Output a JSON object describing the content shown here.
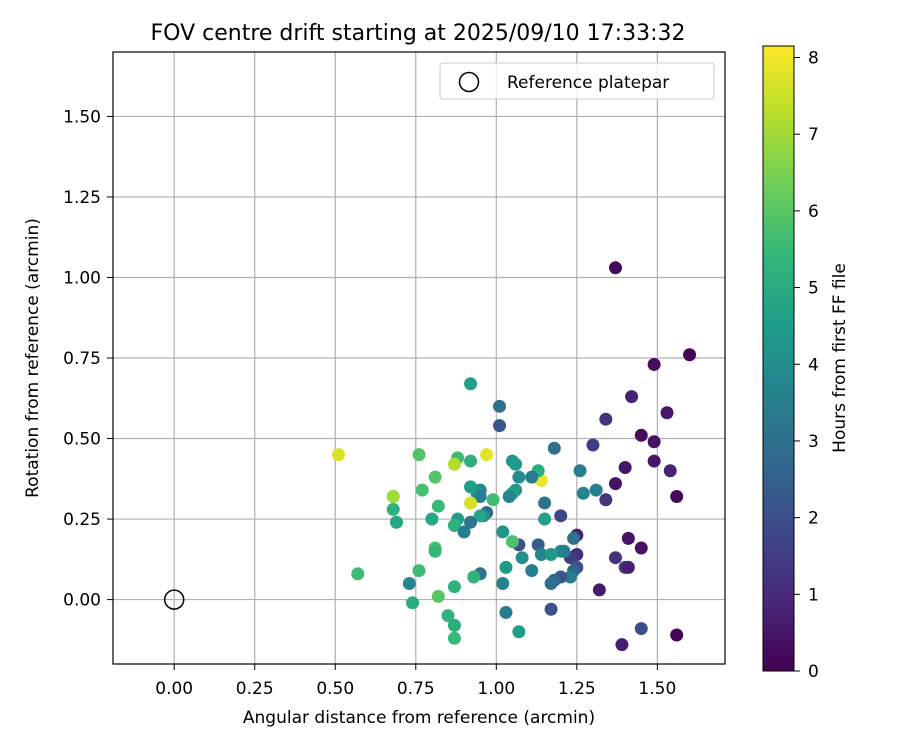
{
  "chart_data": {
    "type": "scatter",
    "title": "FOV centre drift starting at 2025/09/10 17:33:32",
    "xlabel": "Angular distance from reference (arcmin)",
    "ylabel": "Rotation from reference (arcmin)",
    "xlim": [
      -0.19,
      1.71
    ],
    "ylim": [
      -0.2,
      1.7
    ],
    "x_ticks": [
      0.0,
      0.25,
      0.5,
      0.75,
      1.0,
      1.25,
      1.5
    ],
    "x_tick_labels": [
      "0.00",
      "0.25",
      "0.50",
      "0.75",
      "1.00",
      "1.25",
      "1.50"
    ],
    "y_ticks": [
      0.0,
      0.25,
      0.5,
      0.75,
      1.0,
      1.25,
      1.5
    ],
    "y_tick_labels": [
      "0.00",
      "0.25",
      "0.50",
      "0.75",
      "1.00",
      "1.25",
      "1.50"
    ],
    "grid": true,
    "legend_position": "top-right",
    "legend_label": "Reference platepar",
    "reference_point": {
      "x": 0.0,
      "y": 0.0
    },
    "colorbar": {
      "label": "Hours from first FF file",
      "range": [
        0,
        8.15
      ],
      "ticks": [
        0,
        1,
        2,
        3,
        4,
        5,
        6,
        7,
        8
      ],
      "tick_labels": [
        "0",
        "1",
        "2",
        "3",
        "4",
        "5",
        "6",
        "7",
        "8"
      ],
      "colormap": "viridis",
      "colormap_stops": [
        "#440154",
        "#482878",
        "#3e4989",
        "#31688e",
        "#26828e",
        "#1f9e89",
        "#35b779",
        "#6ece58",
        "#b5de2b",
        "#fde725"
      ]
    },
    "points": [
      {
        "x": 1.37,
        "y": 1.03,
        "t": 0.2
      },
      {
        "x": 1.6,
        "y": 0.76,
        "t": 0.1
      },
      {
        "x": 1.49,
        "y": 0.73,
        "t": 0.3
      },
      {
        "x": 1.42,
        "y": 0.63,
        "t": 0.8
      },
      {
        "x": 1.53,
        "y": 0.58,
        "t": 0.5
      },
      {
        "x": 1.34,
        "y": 0.56,
        "t": 1.2
      },
      {
        "x": 1.45,
        "y": 0.51,
        "t": 0.3
      },
      {
        "x": 1.49,
        "y": 0.49,
        "t": 0.4
      },
      {
        "x": 1.3,
        "y": 0.48,
        "t": 1.5
      },
      {
        "x": 1.49,
        "y": 0.43,
        "t": 0.5
      },
      {
        "x": 1.4,
        "y": 0.41,
        "t": 0.5
      },
      {
        "x": 1.54,
        "y": 0.4,
        "t": 0.8
      },
      {
        "x": 1.37,
        "y": 0.36,
        "t": 0.4
      },
      {
        "x": 1.56,
        "y": 0.32,
        "t": 0.2
      },
      {
        "x": 1.34,
        "y": 0.31,
        "t": 1.2
      },
      {
        "x": 1.31,
        "y": 0.34,
        "t": 3.5
      },
      {
        "x": 1.26,
        "y": 0.4,
        "t": 3.5
      },
      {
        "x": 1.27,
        "y": 0.33,
        "t": 3.7
      },
      {
        "x": 1.18,
        "y": 0.47,
        "t": 3.0
      },
      {
        "x": 1.41,
        "y": 0.19,
        "t": 0.4
      },
      {
        "x": 1.45,
        "y": 0.16,
        "t": 0.4
      },
      {
        "x": 1.37,
        "y": 0.13,
        "t": 1.2
      },
      {
        "x": 1.4,
        "y": 0.1,
        "t": 1.4
      },
      {
        "x": 1.41,
        "y": 0.1,
        "t": 0.7
      },
      {
        "x": 1.32,
        "y": 0.03,
        "t": 0.6
      },
      {
        "x": 1.45,
        "y": -0.09,
        "t": 2.0
      },
      {
        "x": 1.39,
        "y": -0.14,
        "t": 0.7
      },
      {
        "x": 1.56,
        "y": -0.11,
        "t": 0.1
      },
      {
        "x": 1.25,
        "y": 0.2,
        "t": 0.8
      },
      {
        "x": 1.25,
        "y": 0.14,
        "t": 1.1
      },
      {
        "x": 1.23,
        "y": 0.13,
        "t": 1.6
      },
      {
        "x": 1.25,
        "y": 0.1,
        "t": 2.0
      },
      {
        "x": 1.24,
        "y": 0.09,
        "t": 2.6
      },
      {
        "x": 1.24,
        "y": 0.19,
        "t": 3.0
      },
      {
        "x": 1.23,
        "y": 0.07,
        "t": 3.5
      },
      {
        "x": 1.2,
        "y": 0.15,
        "t": 4.2
      },
      {
        "x": 1.21,
        "y": 0.15,
        "t": 3.6
      },
      {
        "x": 1.2,
        "y": 0.26,
        "t": 1.7
      },
      {
        "x": 1.2,
        "y": 0.07,
        "t": 2.2
      },
      {
        "x": 1.18,
        "y": 0.06,
        "t": 2.6
      },
      {
        "x": 1.17,
        "y": 0.05,
        "t": 3.0
      },
      {
        "x": 1.17,
        "y": -0.03,
        "t": 2.1
      },
      {
        "x": 1.15,
        "y": 0.3,
        "t": 3.1
      },
      {
        "x": 1.15,
        "y": 0.25,
        "t": 4.6
      },
      {
        "x": 1.13,
        "y": 0.17,
        "t": 2.4
      },
      {
        "x": 1.14,
        "y": 0.14,
        "t": 3.8
      },
      {
        "x": 1.17,
        "y": 0.14,
        "t": 4.3
      },
      {
        "x": 1.11,
        "y": 0.09,
        "t": 3.5
      },
      {
        "x": 1.14,
        "y": 0.37,
        "t": 7.9
      },
      {
        "x": 1.13,
        "y": 0.4,
        "t": 5.0
      },
      {
        "x": 1.11,
        "y": 0.38,
        "t": 3.3
      },
      {
        "x": 1.07,
        "y": 0.38,
        "t": 4.0
      },
      {
        "x": 1.05,
        "y": 0.43,
        "t": 4.2
      },
      {
        "x": 1.06,
        "y": 0.42,
        "t": 4.5
      },
      {
        "x": 1.06,
        "y": 0.34,
        "t": 4.3
      },
      {
        "x": 1.05,
        "y": 0.33,
        "t": 4.6
      },
      {
        "x": 1.04,
        "y": 0.32,
        "t": 3.8
      },
      {
        "x": 1.01,
        "y": 0.6,
        "t": 3.0
      },
      {
        "x": 1.01,
        "y": 0.54,
        "t": 2.2
      },
      {
        "x": 0.92,
        "y": 0.67,
        "t": 4.6
      },
      {
        "x": 1.07,
        "y": 0.17,
        "t": 2.0
      },
      {
        "x": 1.05,
        "y": 0.18,
        "t": 5.8
      },
      {
        "x": 1.08,
        "y": 0.13,
        "t": 4.0
      },
      {
        "x": 1.03,
        "y": 0.1,
        "t": 4.4
      },
      {
        "x": 1.02,
        "y": 0.21,
        "t": 4.3
      },
      {
        "x": 1.02,
        "y": 0.05,
        "t": 3.6
      },
      {
        "x": 1.03,
        "y": -0.04,
        "t": 3.4
      },
      {
        "x": 1.07,
        "y": -0.1,
        "t": 4.5
      },
      {
        "x": 0.97,
        "y": 0.45,
        "t": 7.8
      },
      {
        "x": 0.92,
        "y": 0.43,
        "t": 5.2
      },
      {
        "x": 0.88,
        "y": 0.44,
        "t": 5.6
      },
      {
        "x": 0.87,
        "y": 0.42,
        "t": 7.2
      },
      {
        "x": 0.95,
        "y": 0.34,
        "t": 3.7
      },
      {
        "x": 0.94,
        "y": 0.33,
        "t": 4.5
      },
      {
        "x": 0.95,
        "y": 0.32,
        "t": 3.5
      },
      {
        "x": 0.92,
        "y": 0.35,
        "t": 4.5
      },
      {
        "x": 0.99,
        "y": 0.31,
        "t": 5.6
      },
      {
        "x": 0.97,
        "y": 0.27,
        "t": 2.6
      },
      {
        "x": 0.96,
        "y": 0.26,
        "t": 4.0
      },
      {
        "x": 0.95,
        "y": 0.26,
        "t": 4.8
      },
      {
        "x": 0.92,
        "y": 0.3,
        "t": 7.6
      },
      {
        "x": 0.92,
        "y": 0.24,
        "t": 3.2
      },
      {
        "x": 0.88,
        "y": 0.25,
        "t": 4.6
      },
      {
        "x": 0.87,
        "y": 0.23,
        "t": 5.2
      },
      {
        "x": 0.9,
        "y": 0.21,
        "t": 3.5
      },
      {
        "x": 0.95,
        "y": 0.08,
        "t": 3.2
      },
      {
        "x": 0.93,
        "y": 0.07,
        "t": 5.3
      },
      {
        "x": 0.87,
        "y": 0.04,
        "t": 5.3
      },
      {
        "x": 0.85,
        "y": -0.05,
        "t": 5.3
      },
      {
        "x": 0.87,
        "y": -0.08,
        "t": 5.1
      },
      {
        "x": 0.87,
        "y": -0.12,
        "t": 5.5
      },
      {
        "x": 0.82,
        "y": 0.29,
        "t": 5.5
      },
      {
        "x": 0.8,
        "y": 0.25,
        "t": 4.8
      },
      {
        "x": 0.81,
        "y": 0.16,
        "t": 5.8
      },
      {
        "x": 0.81,
        "y": 0.15,
        "t": 5.4
      },
      {
        "x": 0.81,
        "y": 0.38,
        "t": 5.9
      },
      {
        "x": 0.77,
        "y": 0.34,
        "t": 5.7
      },
      {
        "x": 0.76,
        "y": 0.45,
        "t": 5.9
      },
      {
        "x": 0.76,
        "y": 0.09,
        "t": 5.6
      },
      {
        "x": 0.82,
        "y": 0.01,
        "t": 6.0
      },
      {
        "x": 0.74,
        "y": -0.01,
        "t": 5.0
      },
      {
        "x": 0.73,
        "y": 0.05,
        "t": 3.8
      },
      {
        "x": 0.69,
        "y": 0.24,
        "t": 4.8
      },
      {
        "x": 0.68,
        "y": 0.32,
        "t": 6.5
      },
      {
        "x": 0.68,
        "y": 0.32,
        "t": 7.0
      },
      {
        "x": 0.68,
        "y": 0.28,
        "t": 5.2
      },
      {
        "x": 0.57,
        "y": 0.08,
        "t": 5.6
      },
      {
        "x": 0.51,
        "y": 0.45,
        "t": 7.7
      }
    ]
  }
}
